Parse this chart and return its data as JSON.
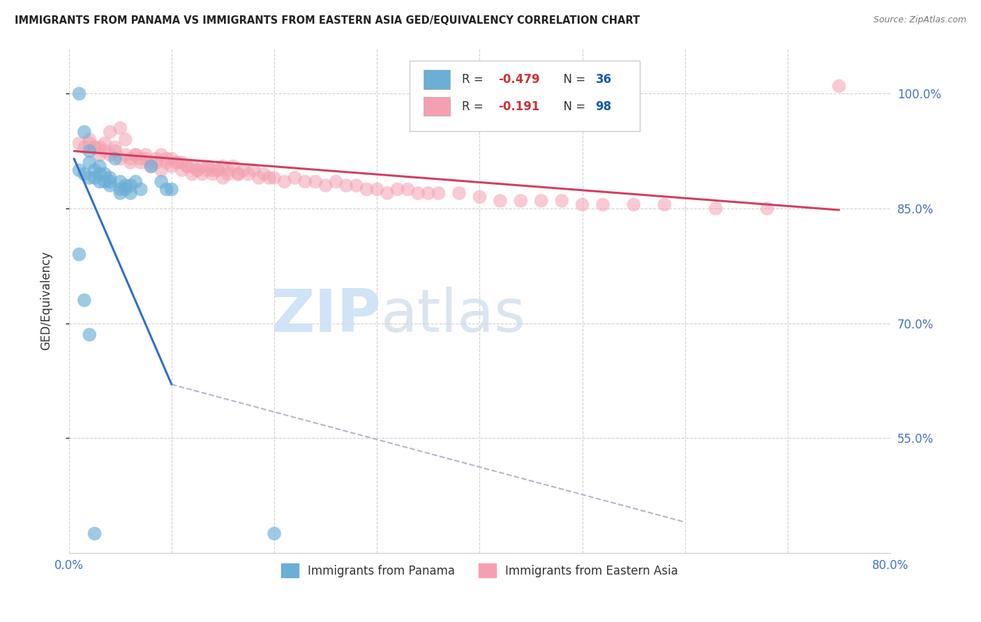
{
  "title": "IMMIGRANTS FROM PANAMA VS IMMIGRANTS FROM EASTERN ASIA GED/EQUIVALENCY CORRELATION CHART",
  "source": "Source: ZipAtlas.com",
  "ylabel": "GED/Equivalency",
  "xlim": [
    0.0,
    80.0
  ],
  "ylim": [
    40.0,
    106.0
  ],
  "y_ticks": [
    55.0,
    70.0,
    85.0,
    100.0
  ],
  "x_ticks": [
    0,
    10,
    20,
    30,
    40,
    50,
    60,
    70,
    80
  ],
  "legend_label1": "Immigrants from Panama",
  "legend_label2": "Immigrants from Eastern Asia",
  "color_blue": "#6baed6",
  "color_pink": "#f4a0b0",
  "title_color": "#222222",
  "source_color": "#777777",
  "axis_label_color": "#4472c4",
  "watermark_color": "#cce0f5",
  "panama_x": [
    1.0,
    1.5,
    2.0,
    2.0,
    2.5,
    3.0,
    3.0,
    3.5,
    4.0,
    4.0,
    4.5,
    5.0,
    5.5,
    6.0,
    6.5,
    7.0,
    8.0,
    9.0,
    9.5,
    10.0,
    1.0,
    1.5,
    2.0,
    2.5,
    3.0,
    3.5,
    4.0,
    5.0,
    5.0,
    5.5,
    6.0,
    1.0,
    1.5,
    2.0,
    2.5,
    20.0
  ],
  "panama_y": [
    100.0,
    95.0,
    92.5,
    91.0,
    90.0,
    90.5,
    89.5,
    89.5,
    89.0,
    88.5,
    91.5,
    88.5,
    87.5,
    88.0,
    88.5,
    87.5,
    90.5,
    88.5,
    87.5,
    87.5,
    90.0,
    89.5,
    89.0,
    89.0,
    88.5,
    88.5,
    88.0,
    87.5,
    87.0,
    88.0,
    87.0,
    79.0,
    73.0,
    68.5,
    42.5,
    42.5
  ],
  "eastern_x": [
    1.0,
    2.0,
    3.0,
    4.0,
    5.0,
    6.0,
    7.0,
    8.0,
    9.0,
    10.0,
    11.0,
    12.0,
    13.0,
    14.0,
    15.0,
    16.0,
    17.0,
    18.0,
    19.0,
    20.0,
    21.0,
    22.0,
    23.0,
    24.0,
    25.0,
    26.0,
    27.0,
    28.0,
    29.0,
    30.0,
    31.0,
    32.0,
    33.0,
    34.0,
    35.0,
    36.0,
    38.0,
    40.0,
    42.0,
    44.0,
    46.0,
    48.0,
    50.0,
    52.0,
    55.0,
    58.0,
    63.0,
    68.0,
    75.0,
    2.5,
    3.5,
    4.5,
    5.5,
    6.5,
    7.5,
    8.5,
    9.5,
    10.5,
    11.5,
    12.5,
    13.5,
    14.5,
    15.5,
    16.5,
    17.5,
    18.5,
    19.5,
    1.5,
    2.5,
    3.5,
    4.5,
    5.5,
    6.5,
    7.5,
    8.5,
    9.5,
    10.5,
    11.5,
    12.5,
    13.5,
    14.5,
    15.5,
    16.5,
    2.0,
    3.0,
    4.0,
    5.0,
    6.0,
    7.0,
    8.0,
    9.0,
    10.0,
    11.0,
    12.0,
    13.0,
    14.0,
    15.0
  ],
  "eastern_y": [
    93.5,
    94.0,
    93.0,
    95.0,
    95.5,
    91.0,
    91.5,
    91.0,
    92.0,
    91.5,
    91.0,
    90.5,
    90.5,
    90.0,
    90.5,
    90.5,
    90.0,
    90.0,
    89.5,
    89.0,
    88.5,
    89.0,
    88.5,
    88.5,
    88.0,
    88.5,
    88.0,
    88.0,
    87.5,
    87.5,
    87.0,
    87.5,
    87.5,
    87.0,
    87.0,
    87.0,
    87.0,
    86.5,
    86.0,
    86.0,
    86.0,
    86.0,
    85.5,
    85.5,
    85.5,
    85.5,
    85.0,
    85.0,
    101.0,
    93.0,
    93.5,
    93.0,
    94.0,
    92.0,
    92.0,
    91.5,
    91.5,
    91.0,
    90.5,
    90.0,
    90.5,
    90.0,
    90.0,
    89.5,
    89.5,
    89.0,
    89.0,
    93.0,
    93.0,
    92.5,
    92.5,
    92.0,
    92.0,
    91.5,
    91.0,
    91.0,
    91.0,
    90.5,
    90.0,
    90.0,
    90.0,
    89.5,
    89.5,
    93.5,
    92.0,
    92.0,
    91.5,
    91.5,
    91.0,
    90.5,
    90.0,
    90.5,
    90.0,
    89.5,
    89.5,
    89.5,
    89.0
  ],
  "blue_trend_x": [
    0.5,
    10.0
  ],
  "blue_trend_y": [
    91.5,
    62.0
  ],
  "pink_trend_x": [
    0.5,
    75.0
  ],
  "pink_trend_y": [
    92.5,
    84.8
  ],
  "dashed_trend_x": [
    10.0,
    60.0
  ],
  "dashed_trend_y": [
    62.0,
    44.0
  ]
}
